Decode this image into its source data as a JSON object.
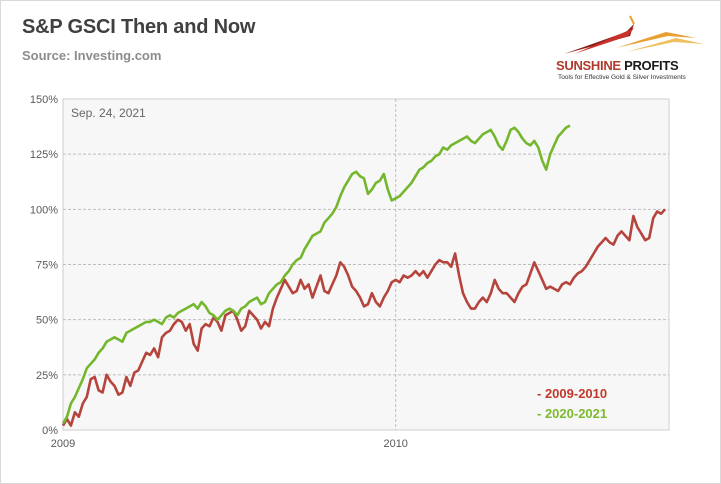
{
  "title": "S&P GSCI Then and Now",
  "source": "Source: Investing.com",
  "logo": {
    "name_part1": "SUNSHINE",
    "name_part2": " PROFITS",
    "tagline": "Tools for Effective Gold & Silver Investments"
  },
  "chart_data": {
    "type": "line",
    "date_annotation": "Sep. 24, 2021",
    "x_tick_labels": [
      "2009",
      "2010"
    ],
    "x_range_trading_days": [
      0,
      459
    ],
    "x_tick_positions_days": [
      0,
      252
    ],
    "ylim": [
      0,
      150
    ],
    "y_ticks": [
      0,
      25,
      50,
      75,
      100,
      125,
      150
    ],
    "y_tick_labels": [
      "0%",
      "25%",
      "50%",
      "75%",
      "100%",
      "125%",
      "150%"
    ],
    "grid": true,
    "legend_position": "bottom-right",
    "series": [
      {
        "name": "- 2009-2010",
        "color": "#b5443c",
        "points": [
          [
            0,
            2
          ],
          [
            3,
            5
          ],
          [
            6,
            2
          ],
          [
            9,
            8
          ],
          [
            12,
            6
          ],
          [
            15,
            12
          ],
          [
            18,
            15
          ],
          [
            21,
            23
          ],
          [
            24,
            24
          ],
          [
            27,
            18
          ],
          [
            30,
            17
          ],
          [
            33,
            25
          ],
          [
            36,
            22
          ],
          [
            39,
            20
          ],
          [
            42,
            16
          ],
          [
            45,
            17
          ],
          [
            48,
            24
          ],
          [
            51,
            20
          ],
          [
            54,
            26
          ],
          [
            57,
            27
          ],
          [
            60,
            31
          ],
          [
            63,
            35
          ],
          [
            66,
            34
          ],
          [
            69,
            37
          ],
          [
            72,
            33
          ],
          [
            75,
            42
          ],
          [
            78,
            44
          ],
          [
            81,
            45
          ],
          [
            84,
            48
          ],
          [
            87,
            50
          ],
          [
            90,
            49
          ],
          [
            93,
            45
          ],
          [
            96,
            48
          ],
          [
            99,
            39
          ],
          [
            102,
            36
          ],
          [
            105,
            46
          ],
          [
            108,
            48
          ],
          [
            111,
            47
          ],
          [
            114,
            51
          ],
          [
            117,
            49
          ],
          [
            120,
            45
          ],
          [
            123,
            52
          ],
          [
            126,
            53
          ],
          [
            129,
            54
          ],
          [
            132,
            50
          ],
          [
            135,
            45
          ],
          [
            138,
            47
          ],
          [
            141,
            54
          ],
          [
            144,
            52
          ],
          [
            147,
            50
          ],
          [
            150,
            46
          ],
          [
            153,
            49
          ],
          [
            156,
            47
          ],
          [
            159,
            55
          ],
          [
            162,
            60
          ],
          [
            165,
            64
          ],
          [
            168,
            68
          ],
          [
            171,
            65
          ],
          [
            174,
            62
          ],
          [
            177,
            63
          ],
          [
            180,
            68
          ],
          [
            183,
            64
          ],
          [
            186,
            66
          ],
          [
            189,
            60
          ],
          [
            192,
            65
          ],
          [
            195,
            70
          ],
          [
            198,
            63
          ],
          [
            201,
            62
          ],
          [
            204,
            66
          ],
          [
            207,
            70
          ],
          [
            210,
            76
          ],
          [
            213,
            74
          ],
          [
            216,
            70
          ],
          [
            219,
            65
          ],
          [
            222,
            63
          ],
          [
            225,
            60
          ],
          [
            228,
            56
          ],
          [
            231,
            57
          ],
          [
            234,
            62
          ],
          [
            237,
            58
          ],
          [
            240,
            56
          ],
          [
            243,
            60
          ],
          [
            246,
            63
          ],
          [
            249,
            67
          ],
          [
            252,
            68
          ],
          [
            255,
            67
          ],
          [
            258,
            70
          ],
          [
            261,
            69
          ],
          [
            264,
            70
          ],
          [
            267,
            72
          ],
          [
            270,
            70
          ],
          [
            273,
            72
          ],
          [
            276,
            69
          ],
          [
            279,
            72
          ],
          [
            282,
            75
          ],
          [
            285,
            77
          ],
          [
            288,
            76
          ],
          [
            291,
            76
          ],
          [
            294,
            74
          ],
          [
            297,
            80
          ],
          [
            300,
            70
          ],
          [
            303,
            62
          ],
          [
            306,
            58
          ],
          [
            309,
            55
          ],
          [
            312,
            55
          ],
          [
            315,
            58
          ],
          [
            318,
            60
          ],
          [
            321,
            58
          ],
          [
            324,
            62
          ],
          [
            327,
            68
          ],
          [
            330,
            64
          ],
          [
            333,
            62
          ],
          [
            336,
            62
          ],
          [
            339,
            60
          ],
          [
            342,
            58
          ],
          [
            345,
            62
          ],
          [
            348,
            65
          ],
          [
            351,
            66
          ],
          [
            354,
            71
          ],
          [
            357,
            76
          ],
          [
            360,
            72
          ],
          [
            363,
            68
          ],
          [
            366,
            64
          ],
          [
            369,
            65
          ],
          [
            372,
            64
          ],
          [
            375,
            63
          ],
          [
            378,
            66
          ],
          [
            381,
            67
          ],
          [
            384,
            66
          ],
          [
            387,
            69
          ],
          [
            390,
            71
          ],
          [
            393,
            72
          ],
          [
            396,
            74
          ],
          [
            399,
            77
          ],
          [
            402,
            80
          ],
          [
            405,
            83
          ],
          [
            408,
            85
          ],
          [
            411,
            87
          ],
          [
            414,
            85
          ],
          [
            417,
            84
          ],
          [
            420,
            88
          ],
          [
            423,
            90
          ],
          [
            426,
            88
          ],
          [
            429,
            86
          ],
          [
            432,
            97
          ],
          [
            435,
            92
          ],
          [
            438,
            89
          ],
          [
            441,
            86
          ],
          [
            444,
            87
          ],
          [
            447,
            96
          ],
          [
            450,
            99
          ],
          [
            453,
            98
          ],
          [
            456,
            100
          ]
        ]
      },
      {
        "name": "- 2020-2021",
        "color": "#74b72e",
        "points": [
          [
            0,
            3
          ],
          [
            3,
            6
          ],
          [
            6,
            12
          ],
          [
            9,
            15
          ],
          [
            12,
            19
          ],
          [
            15,
            23
          ],
          [
            18,
            28
          ],
          [
            21,
            30
          ],
          [
            24,
            32
          ],
          [
            27,
            35
          ],
          [
            30,
            37
          ],
          [
            33,
            40
          ],
          [
            36,
            41
          ],
          [
            39,
            42
          ],
          [
            42,
            41
          ],
          [
            45,
            40
          ],
          [
            48,
            44
          ],
          [
            51,
            45
          ],
          [
            54,
            46
          ],
          [
            57,
            47
          ],
          [
            60,
            48
          ],
          [
            63,
            49
          ],
          [
            66,
            49
          ],
          [
            69,
            50
          ],
          [
            72,
            49
          ],
          [
            75,
            48
          ],
          [
            78,
            51
          ],
          [
            81,
            52
          ],
          [
            84,
            51
          ],
          [
            87,
            53
          ],
          [
            90,
            54
          ],
          [
            93,
            55
          ],
          [
            96,
            56
          ],
          [
            99,
            57
          ],
          [
            102,
            55
          ],
          [
            105,
            58
          ],
          [
            108,
            56
          ],
          [
            111,
            53
          ],
          [
            114,
            52
          ],
          [
            117,
            50
          ],
          [
            120,
            52
          ],
          [
            123,
            54
          ],
          [
            126,
            55
          ],
          [
            129,
            54
          ],
          [
            132,
            52
          ],
          [
            135,
            55
          ],
          [
            138,
            56
          ],
          [
            141,
            58
          ],
          [
            144,
            59
          ],
          [
            147,
            60
          ],
          [
            150,
            57
          ],
          [
            153,
            58
          ],
          [
            156,
            62
          ],
          [
            159,
            64
          ],
          [
            162,
            66
          ],
          [
            165,
            67
          ],
          [
            168,
            70
          ],
          [
            171,
            72
          ],
          [
            174,
            75
          ],
          [
            177,
            77
          ],
          [
            180,
            78
          ],
          [
            183,
            82
          ],
          [
            186,
            85
          ],
          [
            189,
            88
          ],
          [
            192,
            89
          ],
          [
            195,
            90
          ],
          [
            198,
            94
          ],
          [
            201,
            96
          ],
          [
            204,
            98
          ],
          [
            207,
            101
          ],
          [
            210,
            106
          ],
          [
            213,
            110
          ],
          [
            216,
            113
          ],
          [
            219,
            116
          ],
          [
            222,
            117
          ],
          [
            225,
            115
          ],
          [
            228,
            114
          ],
          [
            231,
            107
          ],
          [
            234,
            109
          ],
          [
            237,
            112
          ],
          [
            240,
            113
          ],
          [
            243,
            116
          ],
          [
            246,
            109
          ],
          [
            249,
            104
          ],
          [
            252,
            105
          ],
          [
            255,
            106
          ],
          [
            258,
            108
          ],
          [
            261,
            110
          ],
          [
            264,
            112
          ],
          [
            267,
            115
          ],
          [
            270,
            118
          ],
          [
            273,
            119
          ],
          [
            276,
            121
          ],
          [
            279,
            122
          ],
          [
            282,
            124
          ],
          [
            285,
            125
          ],
          [
            288,
            128
          ],
          [
            291,
            127
          ],
          [
            294,
            129
          ],
          [
            297,
            130
          ],
          [
            300,
            131
          ],
          [
            303,
            132
          ],
          [
            306,
            133
          ],
          [
            309,
            131
          ],
          [
            312,
            130
          ],
          [
            315,
            132
          ],
          [
            318,
            134
          ],
          [
            321,
            135
          ],
          [
            324,
            136
          ],
          [
            327,
            133
          ],
          [
            330,
            129
          ],
          [
            333,
            127
          ],
          [
            336,
            131
          ],
          [
            339,
            136
          ],
          [
            342,
            137
          ],
          [
            345,
            135
          ],
          [
            348,
            132
          ],
          [
            351,
            130
          ],
          [
            354,
            129
          ],
          [
            357,
            131
          ],
          [
            360,
            128
          ],
          [
            363,
            122
          ],
          [
            366,
            118
          ],
          [
            369,
            125
          ],
          [
            372,
            129
          ],
          [
            375,
            133
          ],
          [
            378,
            135
          ],
          [
            381,
            137
          ],
          [
            384,
            138
          ]
        ]
      }
    ]
  }
}
